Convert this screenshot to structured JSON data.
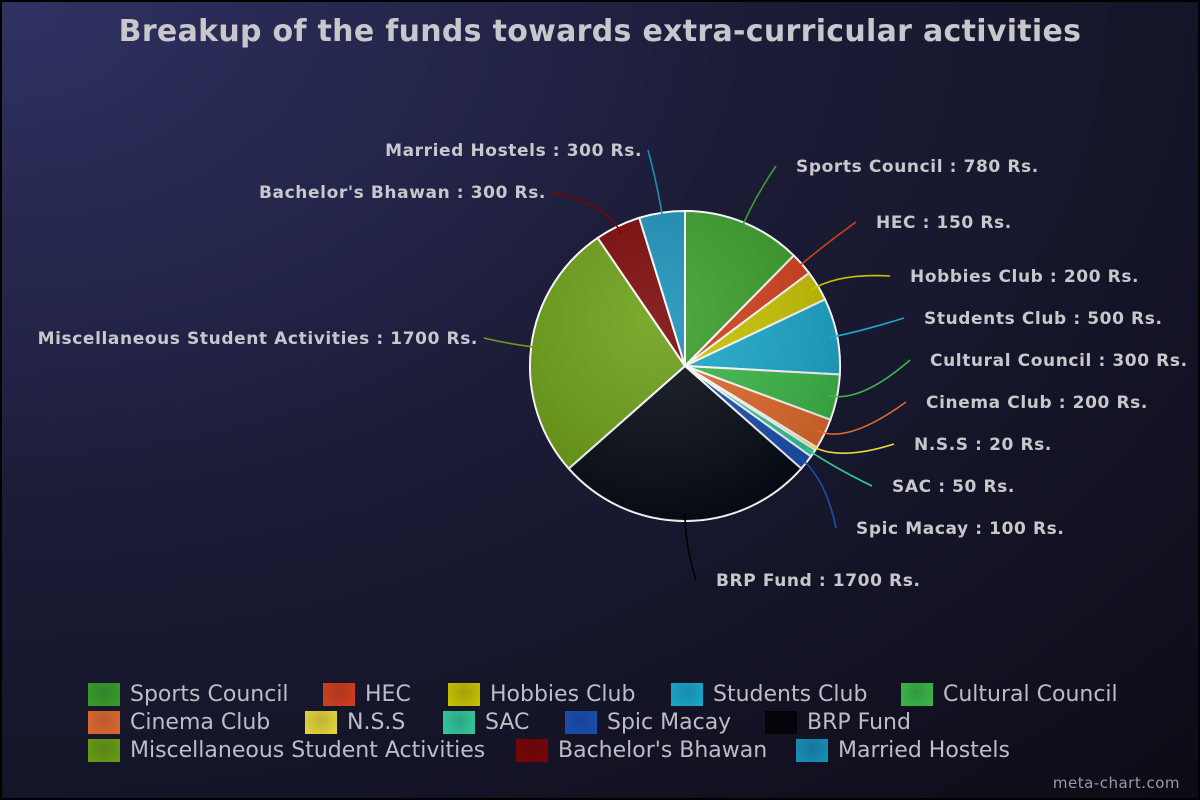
{
  "chart_data": {
    "type": "pie",
    "title": "Breakup of the funds towards extra-curricular activities",
    "unit": "Rs.",
    "start": "top",
    "direction": "clockwise",
    "legend_position": "bottom",
    "slices": [
      {
        "name": "Sports Council",
        "value": 780,
        "label": "Sports Council : 780 Rs.",
        "color": "#3a9e2a"
      },
      {
        "name": "HEC",
        "value": 150,
        "label": "HEC : 150 Rs.",
        "color": "#d2401c"
      },
      {
        "name": "Hobbies Club",
        "value": 200,
        "label": "Hobbies Club : 200 Rs.",
        "color": "#c9c400"
      },
      {
        "name": "Students Club",
        "value": 500,
        "label": "Students Club : 500 Rs.",
        "color": "#1ba8cc"
      },
      {
        "name": "Cultural Council",
        "value": 300,
        "label": "Cultural Council : 300 Rs.",
        "color": "#3cb848"
      },
      {
        "name": "Cinema Club",
        "value": 200,
        "label": "Cinema Club : 200 Rs.",
        "color": "#e06a2c"
      },
      {
        "name": "N.S.S",
        "value": 20,
        "label": "N.S.S : 20 Rs.",
        "color": "#e8d83a"
      },
      {
        "name": "SAC",
        "value": 50,
        "label": "SAC : 50 Rs.",
        "color": "#34c99a"
      },
      {
        "name": "Spic Macay",
        "value": 100,
        "label": "Spic Macay : 100 Rs.",
        "color": "#1a4fb0"
      },
      {
        "name": "BRP Fund",
        "value": 1700,
        "label": "BRP Fund : 1700 Rs.",
        "color": "#050a14"
      },
      {
        "name": "Miscellaneous Student Activities",
        "value": 1700,
        "label": "Miscellaneous Student Activities : 1700 Rs.",
        "color": "#6a9e14"
      },
      {
        "name": "Bachelor's Bhawan",
        "value": 300,
        "label": "Bachelor's Bhawan : 300 Rs.",
        "color": "#7a0404"
      },
      {
        "name": "Married Hostels",
        "value": 300,
        "label": "Married Hostels : 300 Rs.",
        "color": "#1890b8"
      }
    ]
  },
  "watermark": "meta-chart.com"
}
